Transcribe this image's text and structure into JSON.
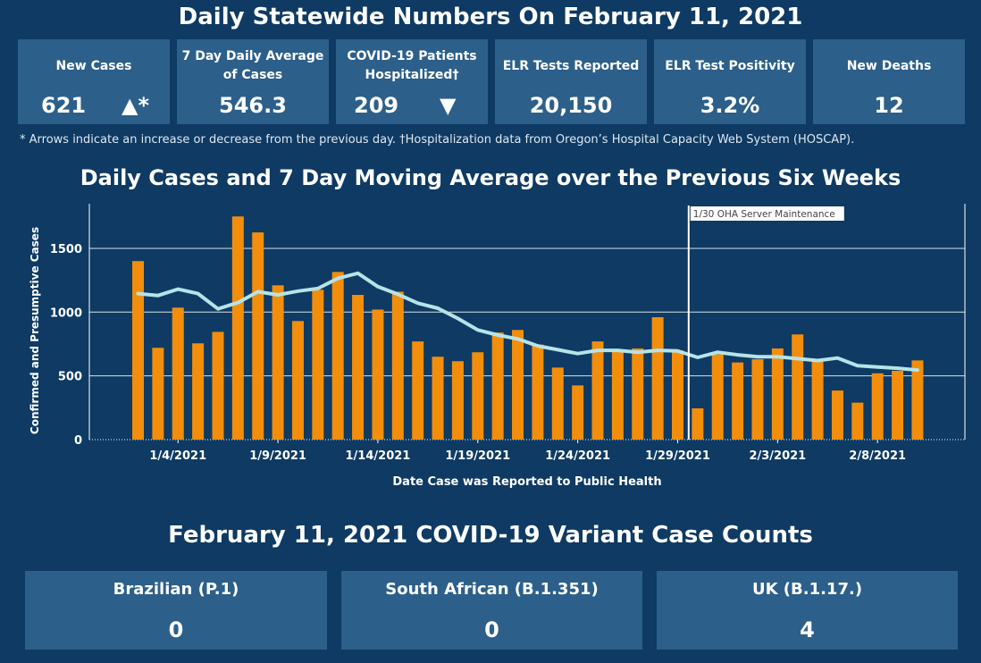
{
  "header": {
    "title": "Daily Statewide Numbers On February 11, 2021"
  },
  "kpis": [
    {
      "label": "New Cases",
      "value": "621",
      "arrow": "▲*"
    },
    {
      "label": "7 Day Daily Average of Cases",
      "value": "546.3",
      "arrow": ""
    },
    {
      "label": "COVID-19 Patients Hospitalized†",
      "value": "209",
      "arrow": "▼"
    },
    {
      "label": "ELR Tests Reported",
      "value": "20,150",
      "arrow": ""
    },
    {
      "label": "ELR Test Positivity",
      "value": "3.2%",
      "arrow": ""
    },
    {
      "label": "New Deaths",
      "value": "12",
      "arrow": ""
    }
  ],
  "footnote": "* Arrows indicate an increase or decrease from the previous day. †Hospitalization data from Oregon’s Hospital Capacity Web System (HOSCAP).",
  "chart_data": {
    "type": "bar",
    "title": "Daily Cases and 7 Day Moving Average over the Previous Six Weeks",
    "xlabel": "Date Case was Reported to Public Health",
    "ylabel": "Confirmed and Presumptive Cases",
    "ylim": [
      0,
      1850
    ],
    "yticks": [
      0,
      500,
      1000,
      1500
    ],
    "xtick_labels": [
      {
        "label": "1/4/2021",
        "index": 2
      },
      {
        "label": "1/9/2021",
        "index": 7
      },
      {
        "label": "1/14/2021",
        "index": 12
      },
      {
        "label": "1/19/2021",
        "index": 17
      },
      {
        "label": "1/24/2021",
        "index": 22
      },
      {
        "label": "1/29/2021",
        "index": 27
      },
      {
        "label": "2/3/2021",
        "index": 32
      },
      {
        "label": "2/8/2021",
        "index": 37
      }
    ],
    "grid": true,
    "bar_color": "#f28e0b",
    "line_color": "#b6e3e8",
    "series": [
      {
        "name": "Daily Cases",
        "values": [
          1400,
          720,
          1035,
          755,
          845,
          1750,
          1625,
          1210,
          930,
          1175,
          1315,
          1135,
          1020,
          1160,
          770,
          650,
          615,
          685,
          840,
          860,
          745,
          565,
          425,
          770,
          690,
          715,
          960,
          700,
          245,
          670,
          605,
          630,
          715,
          825,
          620,
          385,
          290,
          520,
          540,
          621
        ]
      },
      {
        "name": "7 Day Moving Average",
        "values": [
          1145,
          1130,
          1180,
          1145,
          1025,
          1075,
          1160,
          1135,
          1165,
          1185,
          1265,
          1305,
          1200,
          1140,
          1070,
          1030,
          950,
          860,
          820,
          790,
          735,
          705,
          675,
          700,
          700,
          685,
          700,
          695,
          645,
          685,
          665,
          650,
          650,
          635,
          620,
          640,
          580,
          570,
          560,
          546
        ]
      }
    ],
    "annotation": {
      "label": "1/30 OHA Server Maintenance",
      "index": 27.55
    }
  },
  "variants": {
    "title": "February 11, 2021 COVID-19 Variant Case Counts",
    "items": [
      {
        "label": "Brazilian (P.1)",
        "value": "0"
      },
      {
        "label": "South African (B.1.351)",
        "value": "0"
      },
      {
        "label": "UK (B.1.17.)",
        "value": "4"
      }
    ]
  }
}
